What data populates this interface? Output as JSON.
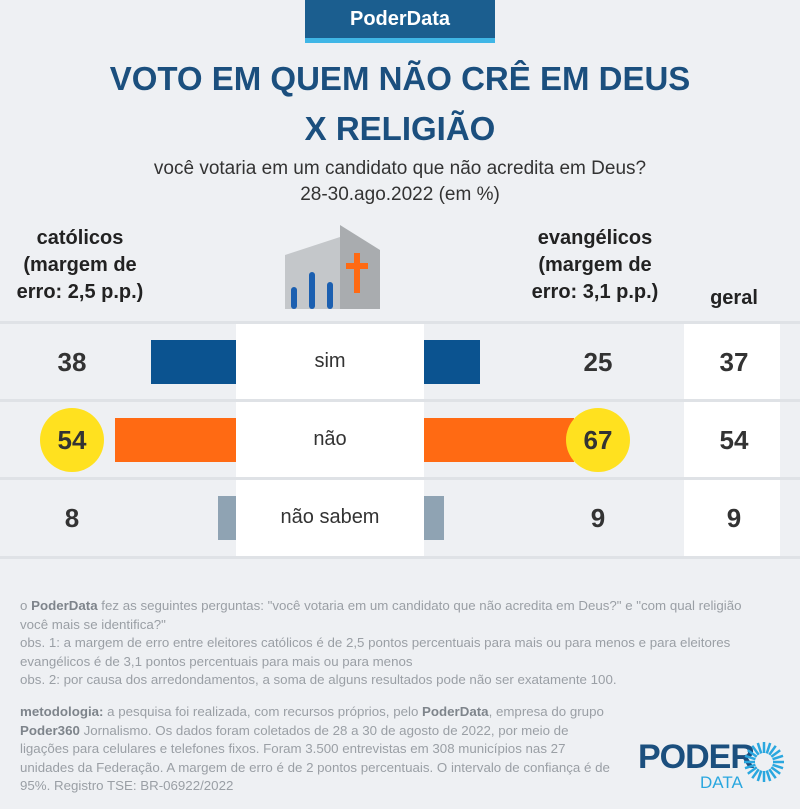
{
  "brand": "PoderData",
  "title_line1": "VOTO EM QUEM NÃO CRÊ EM DEUS",
  "title_line2": "X RELIGIÃO",
  "subtitle": "você votaria em um candidato que não acredita em Deus?",
  "date": "28-30.ago.2022 (em %)",
  "columns": {
    "catolicos": [
      "católicos",
      "(margem de",
      "erro: 2,5 p.p.)"
    ],
    "evangelicos": [
      "evangélicos",
      "(margem de",
      "erro: 3,1 p.p.)"
    ],
    "geral": "geral"
  },
  "colors": {
    "sim": "#0b5390",
    "nao": "#ff6a13",
    "nao_sabem": "#8fa3b3",
    "highlight": "#ffe11f"
  },
  "chart_data": {
    "type": "bar",
    "title": "VOTO EM QUEM NÃO CRÊ EM DEUS X RELIGIÃO",
    "categories": [
      "sim",
      "não",
      "não sabem"
    ],
    "series": [
      {
        "name": "católicos",
        "values": [
          38,
          54,
          8
        ],
        "highlight": [
          false,
          true,
          false
        ]
      },
      {
        "name": "evangélicos",
        "values": [
          25,
          67,
          9
        ],
        "highlight": [
          false,
          true,
          false
        ]
      },
      {
        "name": "geral",
        "values": [
          37,
          54,
          9
        ]
      }
    ]
  },
  "notes": {
    "p1_a": "o ",
    "p1_b": "PoderData",
    "p1_c": " fez as seguintes perguntas:  \"você votaria em um candidato que não acredita em Deus?\" e \"com qual religião você mais se identifica?\"",
    "obs1": "obs. 1: a margem de erro entre eleitores católicos é de 2,5 pontos percentuais para mais ou para menos e para eleitores evangélicos é de 3,1 pontos percentuais para mais ou para menos",
    "obs2": "obs. 2: por causa dos arredondamentos, a soma de alguns resultados pode não ser exatamente 100.",
    "m1": "metodologia:",
    "m2": " a pesquisa foi realizada, com recursos próprios, pelo ",
    "m3": "PoderData",
    "m4": ", empresa do grupo ",
    "m5": "Poder360",
    "m6": " Jornalismo. Os dados foram coletados de 28 a 30 de agosto de 2022, por meio de ligações para celulares e telefones fixos. Foram 3.500 entrevistas em 308 municípios nas 27 unidades da Federação. A margem de erro é de 2 pontos percentuais. O intervalo de confiança é de 95%. Registro TSE: BR-06922/2022"
  },
  "logo": {
    "top": "PODER",
    "bottom": "DATA"
  }
}
